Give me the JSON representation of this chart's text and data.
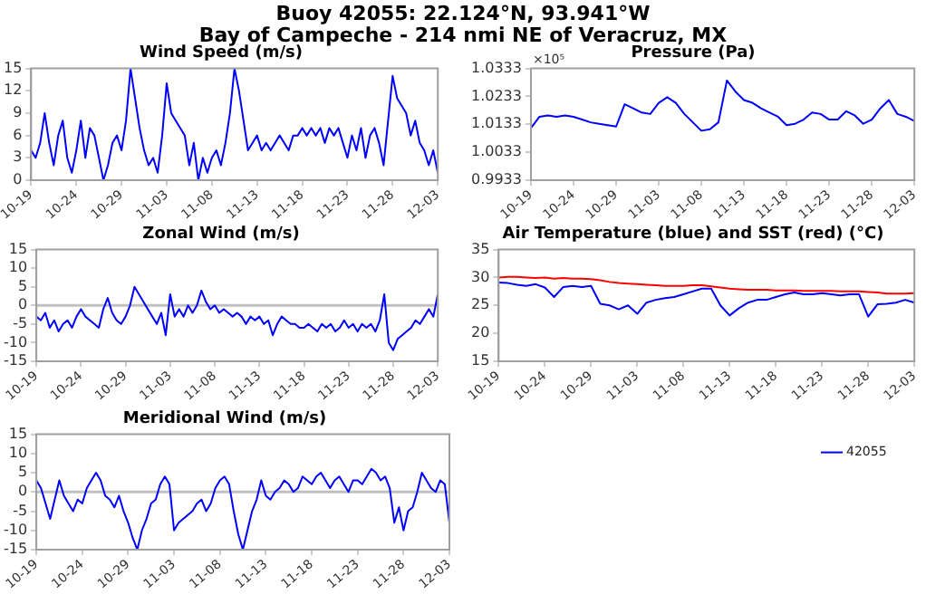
{
  "chart_data": [
    {
      "type": "other",
      "title": "Buoy 42055: 22.124°N, 93.941°W",
      "subtitle": "Bay of Campeche - 214 nmi NE of Veracruz, MX"
    },
    {
      "type": "line",
      "title": "Wind Speed (m/s)",
      "marker": "none",
      "x": [
        "--10-19T00:00",
        "--10-19T12:00",
        "--10-20T00:00",
        "--10-20T12:00",
        "--10-21T00:00",
        "--10-21T12:00",
        "--10-22T00:00",
        "--10-22T12:00",
        "--10-23T00:00",
        "--10-23T12:00",
        "--10-24T00:00",
        "--10-24T12:00",
        "--10-25T00:00",
        "--10-25T12:00",
        "--10-26T00:00",
        "--10-26T12:00",
        "--10-27T00:00",
        "--10-27T12:00",
        "--10-28T00:00",
        "--10-28T12:00",
        "--10-29T00:00",
        "--10-29T12:00",
        "--10-30T00:00",
        "--10-30T12:00",
        "--10-31T00:00",
        "--10-31T12:00",
        "--11-01T00:00",
        "--11-01T12:00",
        "--11-02T00:00",
        "--11-02T12:00",
        "--11-03T00:00",
        "--11-03T12:00",
        "--11-04T00:00",
        "--11-04T12:00",
        "--11-05T00:00",
        "--11-05T12:00",
        "--11-06T00:00",
        "--11-06T12:00",
        "--11-07T00:00",
        "--11-07T12:00",
        "--11-08T00:00",
        "--11-08T12:00",
        "--11-09T00:00",
        "--11-09T12:00",
        "--11-10T00:00",
        "--11-10T12:00",
        "--11-11T00:00",
        "--11-11T12:00",
        "--11-12T00:00",
        "--11-12T12:00",
        "--11-13T00:00",
        "--11-13T12:00",
        "--11-14T00:00",
        "--11-14T12:00",
        "--11-15T00:00",
        "--11-15T12:00",
        "--11-16T00:00",
        "--11-16T12:00",
        "--11-17T00:00",
        "--11-17T12:00",
        "--11-18T00:00",
        "--11-18T12:00",
        "--11-19T00:00",
        "--11-19T12:00",
        "--11-20T00:00",
        "--11-20T12:00",
        "--11-21T00:00",
        "--11-21T12:00",
        "--11-22T00:00",
        "--11-22T12:00",
        "--11-23T00:00",
        "--11-23T12:00",
        "--11-24T00:00",
        "--11-24T12:00",
        "--11-25T00:00",
        "--11-25T12:00",
        "--11-26T00:00",
        "--11-26T12:00",
        "--11-27T00:00",
        "--11-27T12:00",
        "--11-28T00:00",
        "--11-28T12:00",
        "--11-29T00:00",
        "--11-29T12:00",
        "--11-30T00:00",
        "--11-30T12:00",
        "--12-01T00:00",
        "--12-01T12:00",
        "--12-02T00:00",
        "--12-02T12:00",
        "--12-03T00:00"
      ],
      "series": [
        {
          "color": "#0000ff",
          "values": [
            4,
            3,
            5,
            9,
            5,
            2,
            6,
            8,
            3,
            1,
            4,
            8,
            3,
            7,
            6,
            3,
            0,
            2,
            5,
            6,
            4,
            8,
            15,
            11,
            7,
            4,
            2,
            3,
            1,
            6,
            13,
            9,
            8,
            7,
            6,
            2,
            5,
            0,
            3,
            1,
            3,
            4,
            2,
            5,
            9,
            15,
            12,
            8,
            4,
            5,
            6,
            4,
            5,
            4,
            5,
            6,
            5,
            4,
            6,
            6,
            7,
            6,
            7,
            6,
            7,
            5,
            7,
            6,
            7,
            5,
            3,
            6,
            4,
            7,
            3,
            6,
            7,
            5,
            2,
            8,
            14,
            11,
            10,
            9,
            6,
            8,
            5,
            4,
            2,
            4,
            1
          ]
        }
      ],
      "xlim": [
        "--10-19",
        "--12-03"
      ],
      "xticks": [
        {
          "value": "--10-19",
          "label": "10-19"
        },
        {
          "value": "--10-24",
          "label": "10-24"
        },
        {
          "value": "--10-29",
          "label": "10-29"
        },
        {
          "value": "--11-03",
          "label": "11-03"
        },
        {
          "value": "--11-08",
          "label": "11-08"
        },
        {
          "value": "--11-13",
          "label": "11-13"
        },
        {
          "value": "--11-18",
          "label": "11-18"
        },
        {
          "value": "--11-23",
          "label": "11-23"
        },
        {
          "value": "--11-28",
          "label": "11-28"
        },
        {
          "value": "--12-03",
          "label": "12-03"
        }
      ],
      "ylim": [
        0,
        15
      ],
      "yticks": [
        0,
        3,
        6,
        9,
        12,
        15
      ]
    },
    {
      "type": "line",
      "title": "Pressure (Pa)",
      "marker": "none",
      "annotations": [
        "×10⁵"
      ],
      "x": [
        "--10-19",
        "--10-20",
        "--10-21",
        "--10-22",
        "--10-23",
        "--10-24",
        "--10-25",
        "--10-26",
        "--10-27",
        "--10-28",
        "--10-29",
        "--10-30",
        "--10-31",
        "--11-01",
        "--11-02",
        "--11-03",
        "--11-04",
        "--11-05",
        "--11-06",
        "--11-07",
        "--11-08",
        "--11-09",
        "--11-10",
        "--11-11",
        "--11-12",
        "--11-13",
        "--11-14",
        "--11-15",
        "--11-16",
        "--11-17",
        "--11-18",
        "--11-19",
        "--11-20",
        "--11-21",
        "--11-22",
        "--11-23",
        "--11-24",
        "--11-25",
        "--11-26",
        "--11-27",
        "--11-28",
        "--11-29",
        "--11-30",
        "--12-01",
        "--12-02",
        "--12-03"
      ],
      "series": [
        {
          "color": "#0000ff",
          "values": [
            1.012,
            1.016,
            1.0165,
            1.016,
            1.0165,
            1.016,
            1.015,
            1.014,
            1.0135,
            1.013,
            1.0125,
            1.0205,
            1.019,
            1.0175,
            1.017,
            1.021,
            1.023,
            1.021,
            1.017,
            1.014,
            1.011,
            1.0115,
            1.014,
            1.029,
            1.025,
            1.022,
            1.021,
            1.019,
            1.0175,
            1.016,
            1.013,
            1.0135,
            1.015,
            1.0175,
            1.017,
            1.015,
            1.015,
            1.018,
            1.0165,
            1.0135,
            1.015,
            1.019,
            1.022,
            1.017,
            1.016,
            1.0145
          ]
        }
      ],
      "xlim": [
        "--10-19",
        "--12-03"
      ],
      "xticks": [
        {
          "value": "--10-19",
          "label": "10-19"
        },
        {
          "value": "--10-24",
          "label": "10-24"
        },
        {
          "value": "--10-29",
          "label": "10-29"
        },
        {
          "value": "--11-03",
          "label": "11-03"
        },
        {
          "value": "--11-08",
          "label": "11-08"
        },
        {
          "value": "--11-13",
          "label": "11-13"
        },
        {
          "value": "--11-18",
          "label": "11-18"
        },
        {
          "value": "--11-23",
          "label": "11-23"
        },
        {
          "value": "--11-28",
          "label": "11-28"
        },
        {
          "value": "--12-03",
          "label": "12-03"
        }
      ],
      "ylim": [
        0.9933,
        1.0333
      ],
      "yticks": [
        0.9933,
        1.0033,
        1.0133,
        1.0233,
        1.0333
      ]
    },
    {
      "type": "line",
      "title": "Zonal Wind (m/s)",
      "marker": "none",
      "ref_lines": [
        {
          "axis": "y",
          "value": 0,
          "color": "#c0c0c0"
        }
      ],
      "x": [
        "--10-19T00:00",
        "--10-19T12:00",
        "--10-20T00:00",
        "--10-20T12:00",
        "--10-21T00:00",
        "--10-21T12:00",
        "--10-22T00:00",
        "--10-22T12:00",
        "--10-23T00:00",
        "--10-23T12:00",
        "--10-24T00:00",
        "--10-24T12:00",
        "--10-25T00:00",
        "--10-25T12:00",
        "--10-26T00:00",
        "--10-26T12:00",
        "--10-27T00:00",
        "--10-27T12:00",
        "--10-28T00:00",
        "--10-28T12:00",
        "--10-29T00:00",
        "--10-29T12:00",
        "--10-30T00:00",
        "--10-30T12:00",
        "--10-31T00:00",
        "--10-31T12:00",
        "--11-01T00:00",
        "--11-01T12:00",
        "--11-02T00:00",
        "--11-02T12:00",
        "--11-03T00:00",
        "--11-03T12:00",
        "--11-04T00:00",
        "--11-04T12:00",
        "--11-05T00:00",
        "--11-05T12:00",
        "--11-06T00:00",
        "--11-06T12:00",
        "--11-07T00:00",
        "--11-07T12:00",
        "--11-08T00:00",
        "--11-08T12:00",
        "--11-09T00:00",
        "--11-09T12:00",
        "--11-10T00:00",
        "--11-10T12:00",
        "--11-11T00:00",
        "--11-11T12:00",
        "--11-12T00:00",
        "--11-12T12:00",
        "--11-13T00:00",
        "--11-13T12:00",
        "--11-14T00:00",
        "--11-14T12:00",
        "--11-15T00:00",
        "--11-15T12:00",
        "--11-16T00:00",
        "--11-16T12:00",
        "--11-17T00:00",
        "--11-17T12:00",
        "--11-18T00:00",
        "--11-18T12:00",
        "--11-19T00:00",
        "--11-19T12:00",
        "--11-20T00:00",
        "--11-20T12:00",
        "--11-21T00:00",
        "--11-21T12:00",
        "--11-22T00:00",
        "--11-22T12:00",
        "--11-23T00:00",
        "--11-23T12:00",
        "--11-24T00:00",
        "--11-24T12:00",
        "--11-25T00:00",
        "--11-25T12:00",
        "--11-26T00:00",
        "--11-26T12:00",
        "--11-27T00:00",
        "--11-27T12:00",
        "--11-28T00:00",
        "--11-28T12:00",
        "--11-29T00:00",
        "--11-29T12:00",
        "--11-30T00:00",
        "--11-30T12:00",
        "--12-01T00:00",
        "--12-01T12:00",
        "--12-02T00:00",
        "--12-02T12:00",
        "--12-03T00:00"
      ],
      "series": [
        {
          "color": "#0000ff",
          "values": [
            -3,
            -4,
            -2,
            -6,
            -4,
            -7,
            -5,
            -4,
            -6,
            -3,
            -1,
            -3,
            -4,
            -5,
            -6,
            -1,
            2,
            -2,
            -4,
            -5,
            -3,
            0,
            5,
            3,
            1,
            -1,
            -3,
            -5,
            -2,
            -8,
            3,
            -3,
            -1,
            -3,
            0,
            -2,
            0,
            4,
            1,
            -1,
            0,
            -2,
            -1,
            -2,
            -3,
            -2,
            -3,
            -5,
            -3,
            -4,
            -3,
            -5,
            -4,
            -8,
            -5,
            -3,
            -4,
            -5,
            -5,
            -6,
            -6,
            -5,
            -6,
            -7,
            -5,
            -6,
            -5,
            -7,
            -6,
            -4,
            -6,
            -5,
            -7,
            -5,
            -6,
            -5,
            -7,
            -4,
            3,
            -10,
            -12,
            -9,
            -8,
            -7,
            -6,
            -4,
            -5,
            -3,
            -1,
            -3,
            3
          ]
        }
      ],
      "xlim": [
        "--10-19",
        "--12-03"
      ],
      "xticks": [
        {
          "value": "--10-19",
          "label": "10-19"
        },
        {
          "value": "--10-24",
          "label": "10-24"
        },
        {
          "value": "--10-29",
          "label": "10-29"
        },
        {
          "value": "--11-03",
          "label": "11-03"
        },
        {
          "value": "--11-08",
          "label": "11-08"
        },
        {
          "value": "--11-13",
          "label": "11-13"
        },
        {
          "value": "--11-18",
          "label": "11-18"
        },
        {
          "value": "--11-23",
          "label": "11-23"
        },
        {
          "value": "--11-28",
          "label": "11-28"
        },
        {
          "value": "--12-03",
          "label": "12-03"
        }
      ],
      "ylim": [
        -15,
        15
      ],
      "yticks": [
        -15,
        -10,
        -5,
        0,
        5,
        10,
        15
      ]
    },
    {
      "type": "line",
      "title": "Air Temperature (blue) and SST (red) (°C)",
      "marker": "none",
      "x": [
        "--10-19",
        "--10-20",
        "--10-21",
        "--10-22",
        "--10-23",
        "--10-24",
        "--10-25",
        "--10-26",
        "--10-27",
        "--10-28",
        "--10-29",
        "--10-30",
        "--10-31",
        "--11-01",
        "--11-02",
        "--11-03",
        "--11-04",
        "--11-05",
        "--11-06",
        "--11-07",
        "--11-08",
        "--11-09",
        "--11-10",
        "--11-11",
        "--11-12",
        "--11-13",
        "--11-14",
        "--11-15",
        "--11-16",
        "--11-17",
        "--11-18",
        "--11-19",
        "--11-20",
        "--11-21",
        "--11-22",
        "--11-23",
        "--11-24",
        "--11-25",
        "--11-26",
        "--11-27",
        "--11-28",
        "--11-29",
        "--11-30",
        "--12-01",
        "--12-02",
        "--12-03"
      ],
      "series": [
        {
          "color": "#ff0000",
          "values": [
            30,
            30.1,
            30.1,
            30,
            29.9,
            30,
            29.8,
            29.9,
            29.8,
            29.8,
            29.7,
            29.5,
            29.2,
            29,
            28.9,
            28.8,
            28.7,
            28.6,
            28.5,
            28.5,
            28.5,
            28.6,
            28.6,
            28.4,
            28.2,
            28,
            27.9,
            27.8,
            27.8,
            27.8,
            27.7,
            27.7,
            27.7,
            27.6,
            27.6,
            27.6,
            27.6,
            27.5,
            27.5,
            27.5,
            27.4,
            27.3,
            27.1,
            27.1,
            27.1,
            27.2
          ]
        },
        {
          "color": "#0000ff",
          "values": [
            29.1,
            29,
            28.7,
            28.5,
            28.8,
            28.2,
            26.5,
            28.3,
            28.5,
            28.3,
            28.5,
            25.3,
            25,
            24.3,
            25,
            23.5,
            25.5,
            26,
            26.3,
            26.5,
            27,
            27.5,
            28,
            28,
            25,
            23.2,
            24.5,
            25.5,
            26,
            26,
            26.5,
            27,
            27.3,
            27,
            27,
            27.2,
            27,
            26.8,
            27,
            27,
            23,
            25.2,
            25.3,
            25.5,
            26,
            25.5
          ]
        }
      ],
      "xlim": [
        "--10-19",
        "--12-03"
      ],
      "xticks": [
        {
          "value": "--10-19",
          "label": "10-19"
        },
        {
          "value": "--10-24",
          "label": "10-24"
        },
        {
          "value": "--10-29",
          "label": "10-29"
        },
        {
          "value": "--11-03",
          "label": "11-03"
        },
        {
          "value": "--11-08",
          "label": "11-08"
        },
        {
          "value": "--11-13",
          "label": "11-13"
        },
        {
          "value": "--11-18",
          "label": "11-18"
        },
        {
          "value": "--11-23",
          "label": "11-23"
        },
        {
          "value": "--11-28",
          "label": "11-28"
        },
        {
          "value": "--12-03",
          "label": "12-03"
        }
      ],
      "ylim": [
        15,
        35
      ],
      "yticks": [
        15,
        20,
        25,
        30,
        35
      ]
    },
    {
      "type": "line",
      "title": "Meridional Wind (m/s)",
      "marker": "none",
      "legend": "right",
      "ref_lines": [
        {
          "axis": "y",
          "value": 0,
          "color": "#c0c0c0"
        }
      ],
      "x": [
        "--10-19T00:00",
        "--10-19T12:00",
        "--10-20T00:00",
        "--10-20T12:00",
        "--10-21T00:00",
        "--10-21T12:00",
        "--10-22T00:00",
        "--10-22T12:00",
        "--10-23T00:00",
        "--10-23T12:00",
        "--10-24T00:00",
        "--10-24T12:00",
        "--10-25T00:00",
        "--10-25T12:00",
        "--10-26T00:00",
        "--10-26T12:00",
        "--10-27T00:00",
        "--10-27T12:00",
        "--10-28T00:00",
        "--10-28T12:00",
        "--10-29T00:00",
        "--10-29T12:00",
        "--10-30T00:00",
        "--10-30T12:00",
        "--10-31T00:00",
        "--10-31T12:00",
        "--11-01T00:00",
        "--11-01T12:00",
        "--11-02T00:00",
        "--11-02T12:00",
        "--11-03T00:00",
        "--11-03T12:00",
        "--11-04T00:00",
        "--11-04T12:00",
        "--11-05T00:00",
        "--11-05T12:00",
        "--11-06T00:00",
        "--11-06T12:00",
        "--11-07T00:00",
        "--11-07T12:00",
        "--11-08T00:00",
        "--11-08T12:00",
        "--11-09T00:00",
        "--11-09T12:00",
        "--11-10T00:00",
        "--11-10T12:00",
        "--11-11T00:00",
        "--11-11T12:00",
        "--11-12T00:00",
        "--11-12T12:00",
        "--11-13T00:00",
        "--11-13T12:00",
        "--11-14T00:00",
        "--11-14T12:00",
        "--11-15T00:00",
        "--11-15T12:00",
        "--11-16T00:00",
        "--11-16T12:00",
        "--11-17T00:00",
        "--11-17T12:00",
        "--11-18T00:00",
        "--11-18T12:00",
        "--11-19T00:00",
        "--11-19T12:00",
        "--11-20T00:00",
        "--11-20T12:00",
        "--11-21T00:00",
        "--11-21T12:00",
        "--11-22T00:00",
        "--11-22T12:00",
        "--11-23T00:00",
        "--11-23T12:00",
        "--11-24T00:00",
        "--11-24T12:00",
        "--11-25T00:00",
        "--11-25T12:00",
        "--11-26T00:00",
        "--11-26T12:00",
        "--11-27T00:00",
        "--11-27T12:00",
        "--11-28T00:00",
        "--11-28T12:00",
        "--11-29T00:00",
        "--11-29T12:00",
        "--11-30T00:00",
        "--11-30T12:00",
        "--12-01T00:00",
        "--12-01T12:00",
        "--12-02T00:00",
        "--12-02T12:00",
        "--12-03T00:00"
      ],
      "series": [
        {
          "name": "42055",
          "color": "#0000ff",
          "values": [
            3,
            1,
            -3,
            -7,
            -2,
            3,
            -1,
            -3,
            -5,
            -2,
            -3,
            1,
            3,
            5,
            3,
            -1,
            -2,
            -4,
            -1,
            -5,
            -8,
            -12,
            -15,
            -10,
            -7,
            -3,
            -2,
            2,
            4,
            2,
            -10,
            -8,
            -7,
            -6,
            -5,
            -3,
            -2,
            -5,
            -3,
            1,
            3,
            4,
            2,
            -5,
            -11,
            -15,
            -10,
            -5,
            -2,
            3,
            -1,
            -2,
            0,
            1,
            3,
            2,
            0,
            1,
            4,
            3,
            2,
            4,
            5,
            3,
            1,
            3,
            4,
            2,
            0,
            3,
            3,
            2,
            4,
            6,
            5,
            3,
            4,
            1,
            -8,
            -4,
            -10,
            -5,
            -4,
            0,
            5,
            3,
            1,
            0,
            3,
            2,
            -8
          ]
        }
      ],
      "xlim": [
        "--10-19",
        "--12-03"
      ],
      "xticks": [
        {
          "value": "--10-19",
          "label": "10-19"
        },
        {
          "value": "--10-24",
          "label": "10-24"
        },
        {
          "value": "--10-29",
          "label": "10-29"
        },
        {
          "value": "--11-03",
          "label": "11-03"
        },
        {
          "value": "--11-08",
          "label": "11-08"
        },
        {
          "value": "--11-13",
          "label": "11-13"
        },
        {
          "value": "--11-18",
          "label": "11-18"
        },
        {
          "value": "--11-23",
          "label": "11-23"
        },
        {
          "value": "--11-28",
          "label": "11-28"
        },
        {
          "value": "--12-03",
          "label": "12-03"
        }
      ],
      "ylim": [
        -15,
        15
      ],
      "yticks": [
        -15,
        -10,
        -5,
        0,
        5,
        10,
        15
      ]
    }
  ]
}
